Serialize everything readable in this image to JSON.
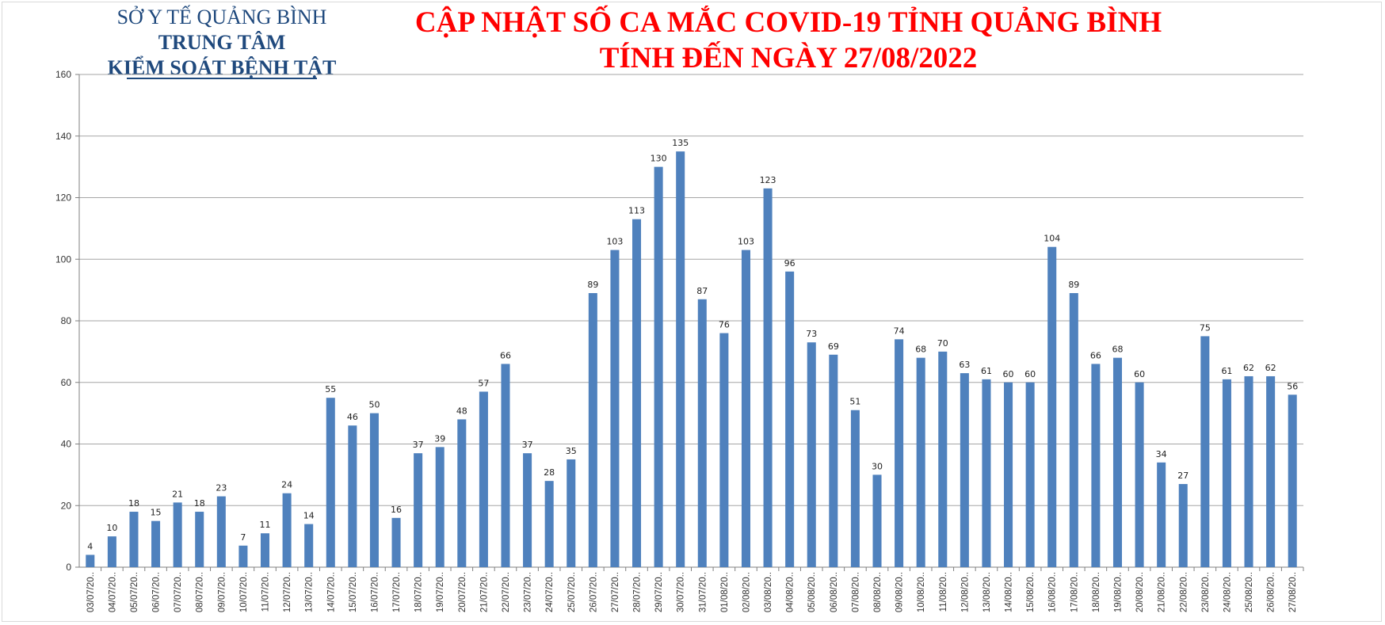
{
  "header": {
    "org_line1": "SỞ Y TẾ QUẢNG BÌNH",
    "org_line2": "TRUNG TÂM",
    "org_line3": "KIỂM SOÁT BỆNH TẬT",
    "title_line1": "CẬP NHẬT SỐ CA MẮC COVID-19 TỈNH QUẢNG BÌNH",
    "title_line2": "TÍNH ĐẾN NGÀY 27/08/2022"
  },
  "colors": {
    "bar": "#4f81bd",
    "title": "#ff0000",
    "org": "#1f497d",
    "grid": "#a6a6a6"
  },
  "chart_data": {
    "type": "bar",
    "title": "CẬP NHẬT SỐ CA MẮC COVID-19 TỈNH QUẢNG BÌNH TÍNH ĐẾN NGÀY 27/08/2022",
    "xlabel": "",
    "ylabel": "",
    "ylim": [
      0,
      160
    ],
    "yticks": [
      0,
      20,
      40,
      60,
      80,
      100,
      120,
      140,
      160
    ],
    "grid": true,
    "legend": "none",
    "categories": [
      "03/07/20..",
      "04/07/20..",
      "05/07/20..",
      "06/07/20..",
      "07/07/20..",
      "08/07/20..",
      "09/07/20..",
      "10/07/20..",
      "11/07/20..",
      "12/07/20..",
      "13/07/20..",
      "14/07/20..",
      "15/07/20..",
      "16/07/20..",
      "17/07/20..",
      "18/07/20..",
      "19/07/20..",
      "20/07/20..",
      "21/07/20..",
      "22/07/20..",
      "23/07/20..",
      "24/07/20..",
      "25/07/20..",
      "26/07/20..",
      "27/07/20..",
      "28/07/20..",
      "29/07/20..",
      "30/07/20..",
      "31/07/20..",
      "01/08/20..",
      "02/08/20..",
      "03/08/20..",
      "04/08/20..",
      "05/08/20..",
      "06/08/20..",
      "07/08/20..",
      "08/08/20..",
      "09/08/20..",
      "10/08/20..",
      "11/08/20..",
      "12/08/20..",
      "13/08/20..",
      "14/08/20..",
      "15/08/20..",
      "16/08/20..",
      "17/08/20..",
      "18/08/20..",
      "19/08/20..",
      "20/08/20..",
      "21/08/20..",
      "22/08/20..",
      "23/08/20..",
      "24/08/20..",
      "25/08/20..",
      "26/08/20..",
      "27/08/20.."
    ],
    "values": [
      4,
      10,
      18,
      15,
      21,
      18,
      23,
      7,
      11,
      24,
      14,
      55,
      46,
      50,
      16,
      37,
      39,
      48,
      57,
      66,
      37,
      28,
      35,
      89,
      103,
      113,
      130,
      135,
      87,
      76,
      103,
      123,
      96,
      73,
      69,
      51,
      30,
      74,
      68,
      70,
      63,
      61,
      60,
      60,
      104,
      89,
      66,
      68,
      60,
      34,
      27,
      75,
      61,
      62,
      62,
      56
    ]
  }
}
